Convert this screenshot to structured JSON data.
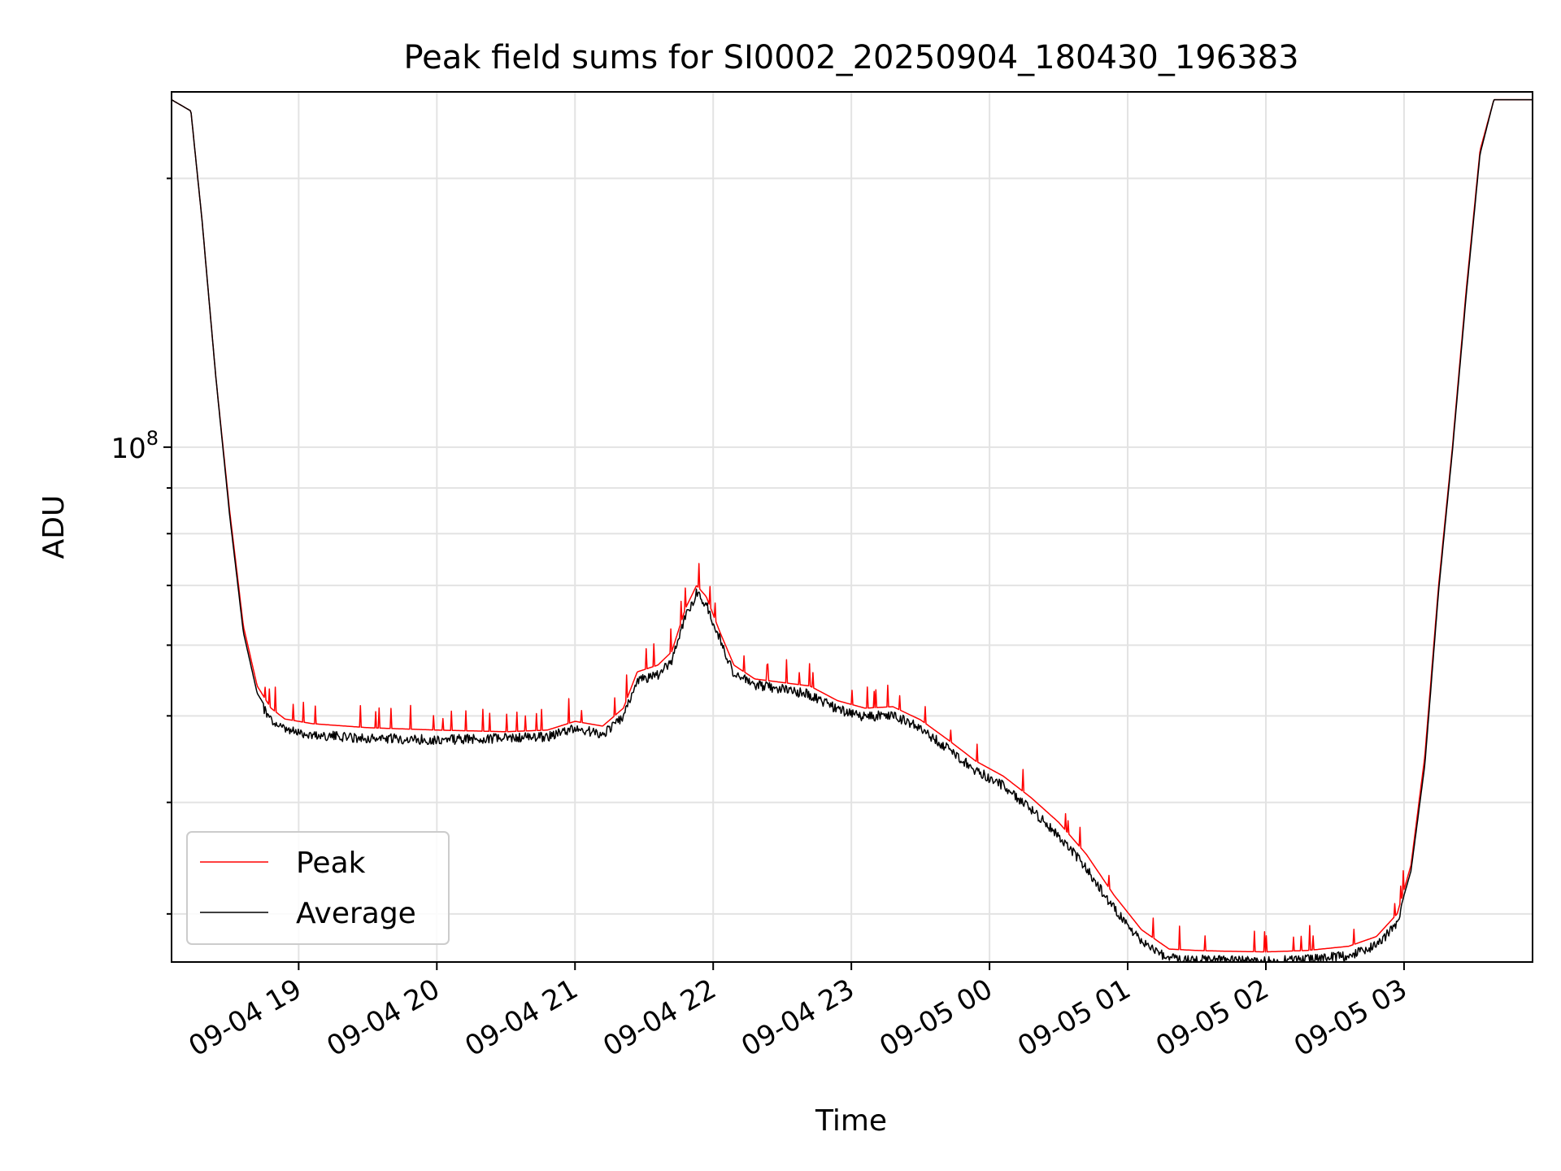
{
  "chart_data": {
    "type": "line",
    "title": "Peak field sums for SI0002_20250904_180430_196383",
    "xlabel": "Time",
    "ylabel": "ADU",
    "yscale": "log",
    "xlim_hours": [
      18.08,
      27.93
    ],
    "ylim": [
      26500000,
      250000000
    ],
    "grid": true,
    "x_ticks": [
      {
        "hour": 19,
        "label": "09-04 19"
      },
      {
        "hour": 20,
        "label": "09-04 20"
      },
      {
        "hour": 21,
        "label": "09-04 21"
      },
      {
        "hour": 22,
        "label": "09-04 22"
      },
      {
        "hour": 23,
        "label": "09-04 23"
      },
      {
        "hour": 24,
        "label": "09-05 00"
      },
      {
        "hour": 25,
        "label": "09-05 01"
      },
      {
        "hour": 26,
        "label": "09-05 02"
      },
      {
        "hour": 27,
        "label": "09-05 03"
      }
    ],
    "y_major_ticks": [
      {
        "value": 100000000,
        "base": "10",
        "exp": "8"
      }
    ],
    "y_minor_ticks": [
      30000000,
      40000000,
      50000000,
      60000000,
      70000000,
      80000000,
      90000000,
      200000000
    ],
    "legend": {
      "location": "lower-left"
    },
    "series": [
      {
        "name": "Peak",
        "color": "#ff0000",
        "points": [
          [
            18.08,
            245000000
          ],
          [
            18.22,
            238000000
          ],
          [
            18.3,
            180000000
          ],
          [
            18.4,
            120000000
          ],
          [
            18.5,
            85000000
          ],
          [
            18.6,
            63000000
          ],
          [
            18.7,
            54000000
          ],
          [
            18.8,
            51000000
          ],
          [
            18.9,
            49600000
          ],
          [
            19.1,
            49000000
          ],
          [
            19.5,
            48500000
          ],
          [
            20.0,
            48200000
          ],
          [
            20.5,
            48000000
          ],
          [
            20.8,
            48200000
          ],
          [
            21.0,
            49300000
          ],
          [
            21.2,
            48700000
          ],
          [
            21.35,
            51000000
          ],
          [
            21.45,
            56000000
          ],
          [
            21.6,
            57000000
          ],
          [
            21.7,
            59000000
          ],
          [
            21.8,
            66000000
          ],
          [
            21.88,
            70000000
          ],
          [
            21.95,
            68000000
          ],
          [
            22.05,
            62000000
          ],
          [
            22.15,
            57000000
          ],
          [
            22.3,
            55000000
          ],
          [
            22.5,
            54500000
          ],
          [
            22.7,
            54000000
          ],
          [
            22.9,
            52000000
          ],
          [
            23.1,
            51000000
          ],
          [
            23.3,
            51200000
          ],
          [
            23.5,
            49500000
          ],
          [
            23.7,
            47000000
          ],
          [
            23.9,
            44500000
          ],
          [
            24.1,
            42800000
          ],
          [
            24.3,
            40500000
          ],
          [
            24.5,
            38000000
          ],
          [
            24.7,
            35000000
          ],
          [
            24.9,
            31500000
          ],
          [
            25.1,
            28800000
          ],
          [
            25.3,
            27400000
          ],
          [
            25.5,
            27300000
          ],
          [
            25.7,
            27250000
          ],
          [
            26.0,
            27200000
          ],
          [
            26.3,
            27300000
          ],
          [
            26.6,
            27600000
          ],
          [
            26.8,
            28300000
          ],
          [
            26.95,
            30000000
          ],
          [
            27.05,
            34000000
          ],
          [
            27.15,
            45000000
          ],
          [
            27.25,
            70000000
          ],
          [
            27.35,
            100000000
          ],
          [
            27.45,
            150000000
          ],
          [
            27.55,
            215000000
          ],
          [
            27.65,
            245000000
          ],
          [
            27.93,
            245000000
          ]
        ]
      },
      {
        "name": "Average",
        "color": "#000000",
        "points": [
          [
            18.08,
            245000000
          ],
          [
            18.22,
            238000000
          ],
          [
            18.3,
            180000000
          ],
          [
            18.4,
            120000000
          ],
          [
            18.5,
            84000000
          ],
          [
            18.6,
            62000000
          ],
          [
            18.7,
            53000000
          ],
          [
            18.8,
            50000000
          ],
          [
            18.9,
            48800000
          ],
          [
            19.1,
            48200000
          ],
          [
            19.5,
            47800000
          ],
          [
            20.0,
            47600000
          ],
          [
            20.5,
            47800000
          ],
          [
            20.8,
            48000000
          ],
          [
            21.0,
            49000000
          ],
          [
            21.2,
            48300000
          ],
          [
            21.35,
            50500000
          ],
          [
            21.45,
            55500000
          ],
          [
            21.6,
            56200000
          ],
          [
            21.7,
            58500000
          ],
          [
            21.8,
            65500000
          ],
          [
            21.88,
            69500000
          ],
          [
            21.95,
            67500000
          ],
          [
            22.05,
            61500000
          ],
          [
            22.15,
            56500000
          ],
          [
            22.3,
            54800000
          ],
          [
            22.5,
            54300000
          ],
          [
            22.7,
            53500000
          ],
          [
            22.9,
            51500000
          ],
          [
            23.1,
            50500000
          ],
          [
            23.3,
            50800000
          ],
          [
            23.5,
            49000000
          ],
          [
            23.7,
            46500000
          ],
          [
            23.9,
            44000000
          ],
          [
            24.1,
            42300000
          ],
          [
            24.3,
            39800000
          ],
          [
            24.5,
            37200000
          ],
          [
            24.7,
            34200000
          ],
          [
            24.9,
            30800000
          ],
          [
            25.1,
            28200000
          ],
          [
            25.3,
            27100000
          ],
          [
            25.5,
            27000000
          ],
          [
            25.7,
            26950000
          ],
          [
            26.0,
            26900000
          ],
          [
            26.3,
            27000000
          ],
          [
            26.6,
            27300000
          ],
          [
            26.8,
            28000000
          ],
          [
            26.95,
            29600000
          ],
          [
            27.05,
            33500000
          ],
          [
            27.15,
            44000000
          ],
          [
            27.25,
            69000000
          ],
          [
            27.35,
            99000000
          ],
          [
            27.45,
            148000000
          ],
          [
            27.55,
            213000000
          ],
          [
            27.65,
            245000000
          ],
          [
            27.93,
            245000000
          ]
        ]
      }
    ]
  }
}
